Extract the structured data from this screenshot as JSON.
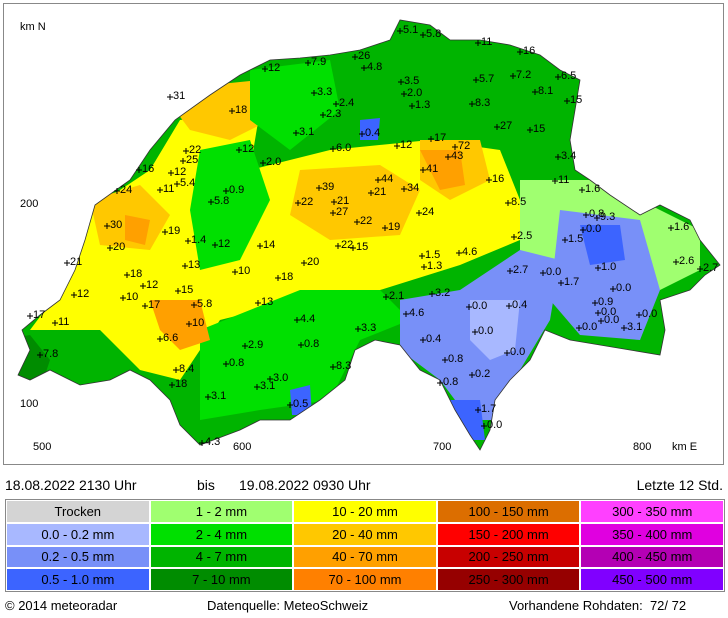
{
  "map": {
    "axis_labels": {
      "north": "km N",
      "east": "km E",
      "y200": "200",
      "y100": "100",
      "x500": "500",
      "x600": "600",
      "x700": "700",
      "x800": "800"
    },
    "stations": [
      "31",
      "18",
      "12",
      "7.9",
      "26",
      "4.8",
      "5.1",
      "5.8",
      "11",
      "16",
      "7.2",
      "5.7",
      "3.5",
      "2.0",
      "1.3",
      "8.3",
      "6.5",
      "8.1",
      "15",
      "3.3",
      "2.4",
      "2.3",
      "3.1",
      "0.4",
      "27",
      "15",
      "17",
      "72",
      "43",
      "12",
      "6.0",
      "22",
      "25",
      "12",
      "2.0",
      "16",
      "12",
      "5.4",
      "11",
      "0.9",
      "24",
      "39",
      "22",
      "21",
      "27",
      "21",
      "44",
      "34",
      "41",
      "16",
      "8.5",
      "11",
      "1.6",
      "3.4",
      "5.8",
      "30",
      "19",
      "1.4",
      "12",
      "14",
      "22",
      "19",
      "24",
      "22",
      "15",
      "20",
      "21",
      "13",
      "10",
      "18",
      "20",
      "1.5",
      "1.3",
      "4.6",
      "2.5",
      "0.8",
      "9.3",
      "0.0",
      "1.5",
      "1.6",
      "18",
      "12",
      "15",
      "10",
      "17",
      "12",
      "5.8",
      "13",
      "2.1",
      "3.2",
      "2.7",
      "0.0",
      "1.7",
      "1.0",
      "0.0",
      "0.9",
      "0.0",
      "0.0",
      "0.0",
      "3.1",
      "0.0",
      "2.6",
      "2.7",
      "17",
      "11",
      "10",
      "4.4",
      "4.6",
      "0.0",
      "0.4",
      "3.3",
      "6.6",
      "0.4",
      "0.0",
      "0.8",
      "2.9",
      "7.8",
      "0.8",
      "0.8",
      "8.3",
      "0.0",
      "8.4",
      "3.0",
      "0.2",
      "3.1",
      "0.8",
      "18",
      "3.1",
      "0.5",
      "1.7",
      "0.0",
      "4.3"
    ]
  },
  "period": {
    "from": "18.08.2022 2130 Uhr",
    "separator": "bis",
    "to": "19.08.2022 0930 Uhr",
    "window": "Letzte 12 Std."
  },
  "legend": {
    "columns": [
      [
        {
          "label": "Trocken",
          "color": "#d4d4d4"
        },
        {
          "label": "0.0 - 0.2 mm",
          "color": "#a8b8ff"
        },
        {
          "label": "0.2 - 0.5 mm",
          "color": "#7890f8"
        },
        {
          "label": "0.5 - 1.0 mm",
          "color": "#3c64ff"
        }
      ],
      [
        {
          "label": "1 - 2 mm",
          "color": "#a0ff70"
        },
        {
          "label": "2 - 4 mm",
          "color": "#00e000"
        },
        {
          "label": "4 - 7 mm",
          "color": "#00b400"
        },
        {
          "label": "7 - 10 mm",
          "color": "#008c00"
        }
      ],
      [
        {
          "label": "10 - 20 mm",
          "color": "#ffff00"
        },
        {
          "label": "20 - 40 mm",
          "color": "#ffc800"
        },
        {
          "label": "40 - 70 mm",
          "color": "#ffa000"
        },
        {
          "label": "70 - 100 mm",
          "color": "#ff8000"
        }
      ],
      [
        {
          "label": "100 - 150 mm",
          "color": "#dc6e00"
        },
        {
          "label": "150 - 200 mm",
          "color": "#ff0000"
        },
        {
          "label": "200 - 250 mm",
          "color": "#c80000"
        },
        {
          "label": "250 - 300 mm",
          "color": "#960000"
        }
      ],
      [
        {
          "label": "300 - 350 mm",
          "color": "#ff40ff"
        },
        {
          "label": "350 - 400 mm",
          "color": "#e000e0"
        },
        {
          "label": "400 - 450 mm",
          "color": "#b400b4"
        },
        {
          "label": "450 - 500 mm",
          "color": "#8000ff"
        }
      ]
    ]
  },
  "footer": {
    "copyright": "© 2014 meteoradar",
    "source": "Datenquelle: MeteoSchweiz",
    "raw": "Vorhandene Rohdaten:  72/ 72"
  }
}
